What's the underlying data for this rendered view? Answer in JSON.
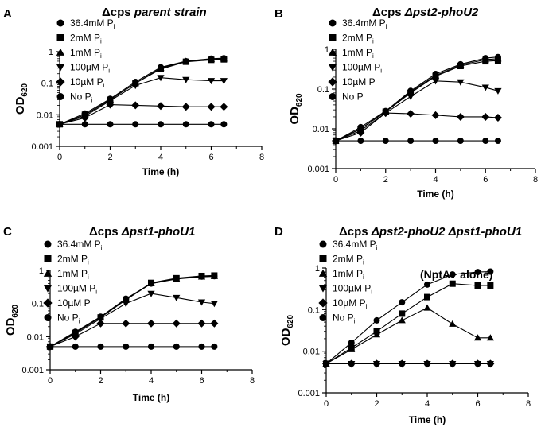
{
  "figure": {
    "xlabel": "Time (h)",
    "ylabel_main": "OD",
    "ylabel_sub": "620"
  },
  "chart_data": [
    {
      "panel": "A",
      "title_prefix": "Δcps",
      "title_rest": " parent strain",
      "annotation": "",
      "type": "line",
      "xlabel": "Time (h)",
      "ylabel": "OD620",
      "xlim": [
        0,
        8
      ],
      "ylim": [
        0.001,
        1
      ],
      "yscale": "log",
      "xticks": [
        "0",
        "2",
        "4",
        "6",
        "8"
      ],
      "yticks": [
        "0.001",
        "0.01",
        "0.1",
        "1"
      ],
      "series": [
        {
          "name": "36.4mM Pi",
          "label": "36.4mM P",
          "sub": "i",
          "marker": "circle",
          "x": [
            0,
            1,
            2,
            3,
            4,
            5,
            6,
            6.5
          ],
          "values": [
            0.005,
            0.011,
            0.032,
            0.11,
            0.32,
            0.5,
            0.6,
            0.62
          ]
        },
        {
          "name": "2mM Pi",
          "label": "2mM P",
          "sub": "i",
          "marker": "square",
          "x": [
            0,
            1,
            2,
            3,
            4,
            5,
            6,
            6.5
          ],
          "values": [
            0.005,
            0.01,
            0.03,
            0.1,
            0.28,
            0.48,
            0.55,
            0.57
          ]
        },
        {
          "name": "1mM Pi",
          "label": "1mM P",
          "sub": "i",
          "marker": "triangle-up",
          "x": [
            0,
            1,
            2,
            3,
            4,
            5,
            6,
            6.5
          ],
          "values": [
            0.005,
            0.01,
            0.03,
            0.1,
            0.3,
            0.5,
            0.58,
            0.6
          ]
        },
        {
          "name": "100µM Pi",
          "label": "100µM P",
          "sub": "i",
          "marker": "triangle-down",
          "x": [
            0,
            1,
            2,
            3,
            4,
            5,
            6,
            6.5
          ],
          "values": [
            0.005,
            0.009,
            0.028,
            0.085,
            0.15,
            0.13,
            0.12,
            0.12
          ]
        },
        {
          "name": "10µM Pi",
          "label": "10µM P",
          "sub": "i",
          "marker": "diamond",
          "x": [
            0,
            1,
            2,
            3,
            4,
            5,
            6,
            6.5
          ],
          "values": [
            0.005,
            0.008,
            0.021,
            0.02,
            0.019,
            0.018,
            0.018,
            0.018
          ]
        },
        {
          "name": "No Pi",
          "label": "No P",
          "sub": "i",
          "marker": "circle",
          "x": [
            0,
            1,
            2,
            3,
            4,
            5,
            6,
            6.5
          ],
          "values": [
            0.005,
            0.005,
            0.005,
            0.005,
            0.005,
            0.005,
            0.005,
            0.005
          ]
        }
      ]
    },
    {
      "panel": "B",
      "title_prefix": "Δcps",
      "title_rest": " Δpst2-phoU2",
      "annotation": "",
      "type": "line",
      "xlabel": "Time (h)",
      "ylabel": "OD620",
      "xlim": [
        0,
        8
      ],
      "ylim": [
        0.001,
        1
      ],
      "yscale": "log",
      "xticks": [
        "0",
        "2",
        "4",
        "6",
        "8"
      ],
      "yticks": [
        "0.001",
        "0.01",
        "0.1",
        "1"
      ],
      "series": [
        {
          "name": "36.4mM Pi",
          "label": "36.4mM P",
          "sub": "i",
          "marker": "circle",
          "x": [
            0,
            1,
            2,
            3,
            4,
            5,
            6,
            6.5
          ],
          "values": [
            0.005,
            0.011,
            0.028,
            0.09,
            0.24,
            0.42,
            0.6,
            0.64
          ]
        },
        {
          "name": "2mM Pi",
          "label": "2mM P",
          "sub": "i",
          "marker": "square",
          "x": [
            0,
            1,
            2,
            3,
            4,
            5,
            6,
            6.5
          ],
          "values": [
            0.005,
            0.01,
            0.027,
            0.08,
            0.21,
            0.38,
            0.5,
            0.52
          ]
        },
        {
          "name": "1mM Pi",
          "label": "1mM P",
          "sub": "i",
          "marker": "triangle-up",
          "x": [
            0,
            1,
            2,
            3,
            4,
            5,
            6,
            6.5
          ],
          "values": [
            0.005,
            0.01,
            0.027,
            0.085,
            0.22,
            0.4,
            0.55,
            0.58
          ]
        },
        {
          "name": "100µM Pi",
          "label": "100µM P",
          "sub": "i",
          "marker": "triangle-down",
          "x": [
            0,
            1,
            2,
            3,
            4,
            5,
            6,
            6.5
          ],
          "values": [
            0.005,
            0.009,
            0.025,
            0.065,
            0.16,
            0.15,
            0.11,
            0.09
          ]
        },
        {
          "name": "10µM Pi",
          "label": "10µM P",
          "sub": "i",
          "marker": "diamond",
          "x": [
            0,
            1,
            2,
            3,
            4,
            5,
            6,
            6.5
          ],
          "values": [
            0.005,
            0.008,
            0.025,
            0.024,
            0.022,
            0.02,
            0.02,
            0.019
          ]
        },
        {
          "name": "No Pi",
          "label": "No P",
          "sub": "i",
          "marker": "circle",
          "x": [
            0,
            1,
            2,
            3,
            4,
            5,
            6,
            6.5
          ],
          "values": [
            0.005,
            0.005,
            0.005,
            0.005,
            0.005,
            0.005,
            0.005,
            0.005
          ]
        }
      ]
    },
    {
      "panel": "C",
      "title_prefix": "Δcps",
      "title_rest": " Δpst1-phoU1",
      "annotation": "",
      "type": "line",
      "xlabel": "Time (h)",
      "ylabel": "OD620",
      "xlim": [
        0,
        8
      ],
      "ylim": [
        0.001,
        1
      ],
      "yscale": "log",
      "xticks": [
        "0",
        "2",
        "4",
        "6",
        "8"
      ],
      "yticks": [
        "0.001",
        "0.01",
        "0.1",
        "1"
      ],
      "series": [
        {
          "name": "36.4mM Pi",
          "label": "36.4mM P",
          "sub": "i",
          "marker": "circle",
          "x": [
            0,
            1,
            2,
            3,
            4,
            5,
            6,
            6.5
          ],
          "values": [
            0.005,
            0.014,
            0.04,
            0.14,
            0.4,
            0.56,
            0.65,
            0.67
          ]
        },
        {
          "name": "2mM Pi",
          "label": "2mM P",
          "sub": "i",
          "marker": "square",
          "x": [
            0,
            1,
            2,
            3,
            4,
            5,
            6,
            6.5
          ],
          "values": [
            0.005,
            0.013,
            0.038,
            0.13,
            0.42,
            0.58,
            0.68,
            0.7
          ]
        },
        {
          "name": "1mM Pi",
          "label": "1mM P",
          "sub": "i",
          "marker": "triangle-up",
          "x": [
            0,
            1,
            2,
            3,
            4,
            5,
            6,
            6.5
          ],
          "values": [
            0.005,
            0.013,
            0.038,
            0.13,
            0.4,
            0.55,
            0.64,
            0.66
          ]
        },
        {
          "name": "100µM Pi",
          "label": "100µM P",
          "sub": "i",
          "marker": "triangle-down",
          "x": [
            0,
            1,
            2,
            3,
            4,
            5,
            6,
            6.5
          ],
          "values": [
            0.005,
            0.012,
            0.035,
            0.1,
            0.2,
            0.15,
            0.11,
            0.1
          ]
        },
        {
          "name": "10µM Pi",
          "label": "10µM P",
          "sub": "i",
          "marker": "diamond",
          "x": [
            0,
            1,
            2,
            3,
            4,
            5,
            6,
            6.5
          ],
          "values": [
            0.005,
            0.01,
            0.025,
            0.025,
            0.025,
            0.025,
            0.025,
            0.025
          ]
        },
        {
          "name": "No Pi",
          "label": "No P",
          "sub": "i",
          "marker": "circle",
          "x": [
            0,
            1,
            2,
            3,
            4,
            5,
            6,
            6.5
          ],
          "values": [
            0.005,
            0.005,
            0.005,
            0.005,
            0.005,
            0.005,
            0.005,
            0.005
          ]
        }
      ]
    },
    {
      "panel": "D",
      "title_prefix": "Δcps",
      "title_rest": " Δpst2-phoU2 Δpst1-phoU1",
      "annotation": "(NptA+ alone)",
      "type": "line",
      "xlabel": "Time (h)",
      "ylabel": "OD620",
      "xlim": [
        0,
        8
      ],
      "ylim": [
        0.001,
        1
      ],
      "yscale": "log",
      "xticks": [
        "0",
        "2",
        "4",
        "6",
        "8"
      ],
      "yticks": [
        "0.001",
        "0.01",
        "0.1",
        "1"
      ],
      "series": [
        {
          "name": "36.4mM Pi",
          "label": "36.4mM P",
          "sub": "i",
          "marker": "circle",
          "x": [
            0,
            1,
            2,
            3,
            4,
            5,
            6,
            6.5
          ],
          "values": [
            0.005,
            0.016,
            0.055,
            0.15,
            0.4,
            0.7,
            0.8,
            0.82
          ]
        },
        {
          "name": "2mM Pi",
          "label": "2mM P",
          "sub": "i",
          "marker": "square",
          "x": [
            0,
            1,
            2,
            3,
            4,
            5,
            6,
            6.5
          ],
          "values": [
            0.005,
            0.012,
            0.03,
            0.08,
            0.2,
            0.42,
            0.38,
            0.38
          ]
        },
        {
          "name": "1mM Pi",
          "label": "1mM P",
          "sub": "i",
          "marker": "triangle-up",
          "x": [
            0,
            1,
            2,
            3,
            4,
            5,
            6,
            6.5
          ],
          "values": [
            0.005,
            0.011,
            0.025,
            0.055,
            0.11,
            0.045,
            0.021,
            0.021
          ]
        },
        {
          "name": "100µM Pi",
          "label": "100µM P",
          "sub": "i",
          "marker": "triangle-down",
          "x": [
            0,
            1,
            2,
            3,
            4,
            5,
            6,
            6.5
          ],
          "values": [
            0.005,
            0.005,
            0.005,
            0.005,
            0.005,
            0.005,
            0.005,
            0.005
          ]
        },
        {
          "name": "10µM Pi",
          "label": "10µM P",
          "sub": "i",
          "marker": "diamond",
          "x": [
            0,
            1,
            2,
            3,
            4,
            5,
            6,
            6.5
          ],
          "values": [
            0.005,
            0.005,
            0.005,
            0.005,
            0.005,
            0.005,
            0.005,
            0.005
          ]
        },
        {
          "name": "No Pi",
          "label": "No P",
          "sub": "i",
          "marker": "circle",
          "x": [
            0,
            1,
            2,
            3,
            4,
            5,
            6,
            6.5
          ],
          "values": [
            0.005,
            0.005,
            0.005,
            0.005,
            0.005,
            0.005,
            0.005,
            0.005
          ]
        }
      ]
    }
  ]
}
